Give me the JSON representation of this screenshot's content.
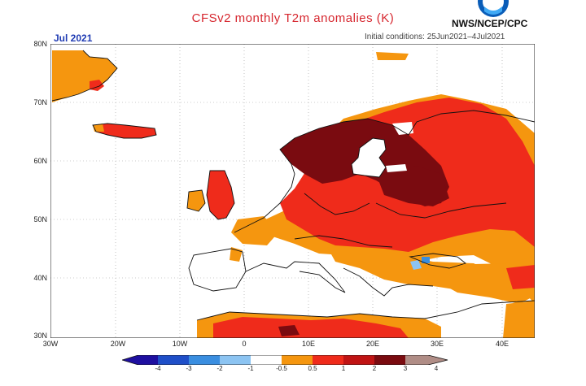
{
  "header": {
    "title": "CFSv2 monthly T2m anomalies (K)",
    "agency": "NWS/NCEP/CPC",
    "month": "Jul 2021",
    "initial_conditions": "Initial conditions: 25Jun2021–4Jul2021"
  },
  "axes": {
    "lat_labels": [
      "80N",
      "70N",
      "60N",
      "50N",
      "40N",
      "30N"
    ],
    "lon_labels": [
      "30W",
      "20W",
      "10W",
      "0",
      "10E",
      "20E",
      "30E",
      "40E"
    ]
  },
  "colorbar": {
    "ticks": [
      "-4",
      "-3",
      "-2",
      "-1",
      "-0.5",
      "0.5",
      "1",
      "2",
      "3",
      "4"
    ],
    "colors": [
      "#1e0fa0",
      "#1f4fc8",
      "#3a8ee0",
      "#8cc4f2",
      "#ffffff",
      "#f5960f",
      "#ef2b1b",
      "#c01414",
      "#7a0b10",
      "#b08d86"
    ]
  },
  "colors": {
    "title": "#d6262e",
    "month": "#1f3bb3",
    "coast": "#111111"
  }
}
